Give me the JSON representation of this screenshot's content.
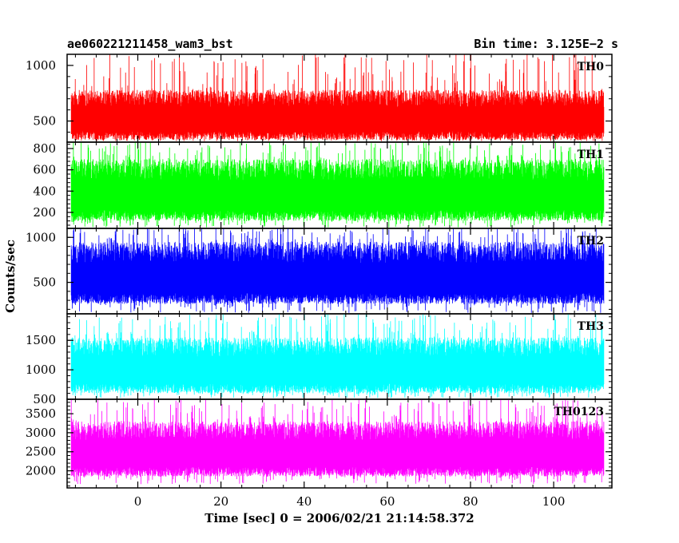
{
  "header": {
    "left": "ae060221211458_wam3_bst",
    "right": "Bin time: 3.125E−2  s"
  },
  "chart_data": {
    "type": "line",
    "title": "ae060221211458_wam3_bst",
    "subtitle": "Bin time: 3.125E−2  s",
    "xlabel": "Time [sec] 0 = 2006/02/21 21:14:58.372",
    "ylabel": "Counts/sec",
    "xlim": [
      -17,
      114
    ],
    "x_data_range": [
      -16,
      112
    ],
    "x_ticks": [
      0,
      20,
      40,
      60,
      80,
      100
    ],
    "x_tick_labels": [
      "0",
      "20",
      "40",
      "60",
      "80",
      "100"
    ],
    "series": [
      {
        "name": "TH0",
        "color": "#ff0000",
        "ylim": [
          310,
          1100
        ],
        "y_ticks": [
          500,
          1000
        ],
        "y_tick_labels": [
          "500",
          "1000"
        ],
        "typical_low": 330,
        "typical_high": 780,
        "min": 320,
        "max": 1120
      },
      {
        "name": "TH1",
        "color": "#00ff00",
        "ylim": [
          50,
          860
        ],
        "y_ticks": [
          200,
          400,
          600,
          800
        ],
        "y_tick_labels": [
          "200",
          "400",
          "600",
          "800"
        ],
        "typical_low": 120,
        "typical_high": 700,
        "min": 60,
        "max": 880
      },
      {
        "name": "TH2",
        "color": "#0000ff",
        "ylim": [
          150,
          1100
        ],
        "y_ticks": [
          500,
          1000
        ],
        "y_tick_labels": [
          "500",
          "1000"
        ],
        "typical_low": 260,
        "typical_high": 950,
        "min": 160,
        "max": 1120
      },
      {
        "name": "TH3",
        "color": "#00ffff",
        "ylim": [
          500,
          1950
        ],
        "y_ticks": [
          500,
          1000,
          1500
        ],
        "y_tick_labels": [
          "500",
          "1000",
          "1500"
        ],
        "typical_low": 600,
        "typical_high": 1550,
        "min": 520,
        "max": 1960
      },
      {
        "name": "TH0123",
        "color": "#ff00ff",
        "ylim": [
          1550,
          3880
        ],
        "y_ticks": [
          2000,
          2500,
          3000,
          3500
        ],
        "y_tick_labels": [
          "2000",
          "2500",
          "3000",
          "3500"
        ],
        "typical_low": 1850,
        "typical_high": 3300,
        "min": 1650,
        "max": 3900
      }
    ],
    "grid": false,
    "legend": "panel labels top-right"
  }
}
